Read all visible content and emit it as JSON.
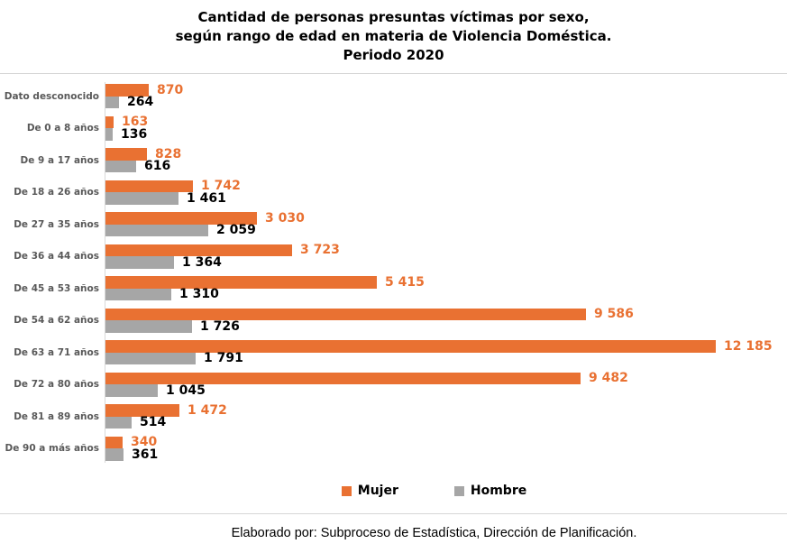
{
  "header": {
    "title_line1": "Cantidad de personas presuntas víctimas por sexo,",
    "title_line2": "según rango de edad en materia de Violencia Doméstica.",
    "title_line3": "Periodo 2020"
  },
  "chart_data": {
    "type": "bar",
    "orientation": "horizontal",
    "title": "Cantidad de personas presuntas víctimas por sexo, según rango de edad en materia de Violencia Doméstica. Periodo 2020",
    "categories": [
      "Dato desconocido",
      "De 0 a 8 años",
      "De 9 a 17 años",
      "De 18 a 26 años",
      "De 27 a 35 años",
      "De 36 a 44 años",
      "De 45 a 53 años",
      "De 54 a 62 años",
      "De 63 a 71 años",
      "De 72 a 80 años",
      "De 81 a 89 años",
      "De 90 a más años"
    ],
    "series": [
      {
        "name": "Mujer",
        "color": "#E97132",
        "label_color": "#E97132",
        "values": [
          870,
          163,
          828,
          1742,
          3030,
          3723,
          5415,
          9586,
          12185,
          9482,
          1472,
          340
        ],
        "labels": [
          "870",
          "163",
          "828",
          "1 742",
          "3 030",
          "3 723",
          "5 415",
          "9 586",
          "12 185",
          "9 482",
          "1 472",
          "340"
        ]
      },
      {
        "name": "Hombre",
        "color": "#A6A6A6",
        "label_color": "#000000",
        "values": [
          264,
          136,
          616,
          1461,
          2059,
          1364,
          1310,
          1726,
          1791,
          1045,
          514,
          361
        ],
        "labels": [
          "264",
          "136",
          "616",
          "1 461",
          "2 059",
          "1 364",
          "1 310",
          "1 726",
          "1 791",
          "1 045",
          "514",
          "361"
        ]
      }
    ],
    "x_max": 12185,
    "grid": false,
    "value_labels": true,
    "legend_position": "bottom"
  },
  "legend": {
    "items": [
      {
        "label": "Mujer",
        "color": "#E97132"
      },
      {
        "label": "Hombre",
        "color": "#A6A6A6"
      }
    ]
  },
  "footer": {
    "text": "Elaborado por: Subproceso de Estadística, Dirección de Planificación."
  },
  "colors": {
    "mujer": "#E97132",
    "hombre": "#A6A6A6",
    "category_label": "#595959",
    "divider": "#D6D6D6",
    "axis": "#D9D9D9"
  }
}
